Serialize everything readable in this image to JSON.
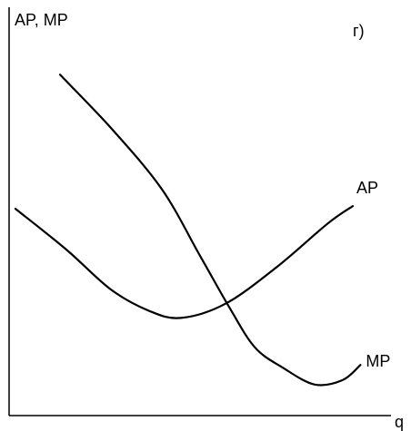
{
  "chart_data": {
    "type": "line",
    "panel_label": "г)",
    "ylabel": "AP, MP",
    "xlabel": "q",
    "grid": false,
    "legend": "none",
    "series": [
      {
        "name": "AP",
        "points": [
          [
            5,
            233
          ],
          [
            45,
            187
          ],
          [
            80,
            142
          ],
          [
            110,
            118
          ],
          [
            135,
            110
          ],
          [
            170,
            126
          ],
          [
            210,
            167
          ],
          [
            250,
            216
          ],
          [
            270,
            236
          ]
        ]
      },
      {
        "name": "MP",
        "points": [
          [
            40,
            384
          ],
          [
            80,
            324
          ],
          [
            120,
            255
          ],
          [
            150,
            180
          ],
          [
            173,
            122
          ],
          [
            193,
            77
          ],
          [
            215,
            54
          ],
          [
            240,
            35
          ],
          [
            262,
            40
          ],
          [
            276,
            57
          ]
        ]
      }
    ],
    "xlim": [
      0,
      300
    ],
    "ylim": [
      0,
      460
    ],
    "curve_labels": [
      {
        "series": "AP",
        "text": "AP"
      },
      {
        "series": "MP",
        "text": "MP"
      }
    ],
    "colors": {
      "line": "#000000",
      "background": "#ffffff"
    }
  }
}
